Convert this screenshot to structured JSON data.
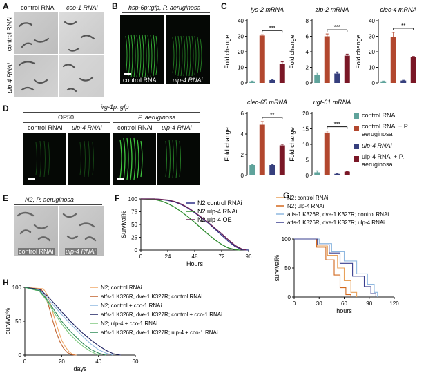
{
  "panels": {
    "A": {
      "label": "A",
      "col_headers": [
        "control RNAi",
        "cco-1 RNAi"
      ],
      "row_headers": [
        "control RNAi",
        "ulp-4 RNAi"
      ]
    },
    "B": {
      "label": "B",
      "title": "hsp-6p::gfp, P. aeruginosa",
      "captions": [
        "control RNAi",
        "ulp-4 RNAi"
      ]
    },
    "C": {
      "label": "C",
      "legend": [
        {
          "label": "control RNAi",
          "color": "#5fa39b"
        },
        {
          "label": "control RNAi + P. aeruginosa",
          "color": "#b2472e"
        },
        {
          "label": "ulp-4 RNAi",
          "color": "#363f7d"
        },
        {
          "label": "ulp-4 RNAi + P. aeruginosa",
          "color": "#7a1726"
        }
      ]
    },
    "D": {
      "label": "D",
      "title": "irg-1p::gfp",
      "groups": [
        "OP50",
        "P. aeruginosa"
      ],
      "captions": [
        "control RNAi",
        "ulp-4 RNAi",
        "control RNAi",
        "ulp-4 RNAi"
      ]
    },
    "E": {
      "label": "E",
      "title": "N2, P. aeruginosa",
      "captions": [
        "control RNAi",
        "ulp-4 RNAi"
      ]
    },
    "F": {
      "label": "F"
    },
    "G": {
      "label": "G"
    },
    "H": {
      "label": "H"
    }
  },
  "chart_data": [
    {
      "id": "C1",
      "type": "bar",
      "title": "lys-2 mRNA",
      "ylabel": "Fold change",
      "ylim": [
        0,
        40
      ],
      "yticks": [
        0,
        10,
        20,
        30,
        40
      ],
      "values": [
        1,
        30.5,
        1.8,
        12
      ],
      "errors": [
        0.2,
        0.5,
        0.3,
        1.5
      ],
      "significance": "***"
    },
    {
      "id": "C2",
      "type": "bar",
      "title": "zip-2 mRNA",
      "ylabel": "Fold change",
      "ylim": [
        0,
        8
      ],
      "yticks": [
        0,
        2,
        4,
        6,
        8
      ],
      "values": [
        1,
        6,
        1.2,
        3.5
      ],
      "errors": [
        0.3,
        0.3,
        0.2,
        0.2
      ],
      "significance": "***"
    },
    {
      "id": "C3",
      "type": "bar",
      "title": "clec-4 mRNA",
      "ylabel": "Fold change",
      "ylim": [
        0,
        40
      ],
      "yticks": [
        0,
        10,
        20,
        30,
        40
      ],
      "values": [
        1,
        29.5,
        1.5,
        16.5
      ],
      "errors": [
        0.2,
        3,
        0.2,
        0.5
      ],
      "significance": "**"
    },
    {
      "id": "C4",
      "type": "bar",
      "title": "clec-65 mRNA",
      "ylabel": "Fold change",
      "ylim": [
        0,
        6
      ],
      "yticks": [
        0,
        2,
        4,
        6
      ],
      "values": [
        1,
        4.9,
        1,
        2.9
      ],
      "errors": [
        0.05,
        0.3,
        0.05,
        0.1
      ],
      "significance": "**"
    },
    {
      "id": "C5",
      "type": "bar",
      "title": "ugt-61 mRNA",
      "ylabel": "Fold change",
      "ylim": [
        0,
        20
      ],
      "yticks": [
        0,
        5,
        10,
        15,
        20
      ],
      "values": [
        1,
        13.8,
        0.5,
        1.2
      ],
      "errors": [
        0.5,
        0.5,
        0.1,
        0.1
      ],
      "significance": "***"
    },
    {
      "id": "F",
      "type": "line",
      "ylabel": "Survival%",
      "xlabel": "Hours",
      "xlim": [
        0,
        96
      ],
      "ylim": [
        0,
        100
      ],
      "xticks": [
        0,
        24,
        48,
        72,
        96
      ],
      "yticks": [
        0,
        25,
        50,
        75,
        100
      ],
      "series": [
        {
          "name": "N2 control RNAi",
          "color": "#2d2f85",
          "x": [
            0,
            12,
            18,
            24,
            30,
            36,
            42,
            48,
            54,
            60,
            66,
            72,
            78,
            84,
            90,
            96
          ],
          "y": [
            100,
            100,
            99,
            97,
            94,
            89,
            82,
            73,
            63,
            53,
            41,
            29,
            17,
            7,
            1,
            0
          ]
        },
        {
          "name": "N2 ulp-4 RNAi",
          "color": "#2e8b2e",
          "x": [
            0,
            12,
            18,
            24,
            30,
            36,
            42,
            48,
            54,
            60,
            66,
            72,
            78,
            84,
            88
          ],
          "y": [
            100,
            99,
            96,
            91,
            84,
            75,
            65,
            54,
            42,
            31,
            20,
            11,
            4,
            1,
            0
          ]
        },
        {
          "name": "N2 ulp-4 OE",
          "color": "#6b2358",
          "x": [
            0,
            12,
            18,
            24,
            30,
            36,
            42,
            48,
            54,
            60,
            66,
            72,
            78,
            84,
            90,
            94
          ],
          "y": [
            100,
            100,
            99,
            98,
            95,
            90,
            83,
            74,
            64,
            54,
            43,
            32,
            20,
            9,
            2,
            0
          ]
        }
      ]
    },
    {
      "id": "G",
      "type": "line",
      "ylabel": "survival%",
      "xlabel": "hours",
      "xlim": [
        0,
        120
      ],
      "ylim": [
        0,
        100
      ],
      "xticks": [
        0,
        30,
        60,
        90,
        120
      ],
      "yticks": [
        0,
        50,
        100
      ],
      "series": [
        {
          "name": "N2; control RNAi",
          "color": "#e8a15a",
          "x": [
            0,
            27,
            27,
            40,
            40,
            52,
            52,
            60,
            60,
            68,
            68,
            75,
            75
          ],
          "y": [
            100,
            100,
            88,
            88,
            72,
            72,
            50,
            50,
            28,
            28,
            8,
            8,
            0
          ]
        },
        {
          "name": "N2; ulp-4 RNAi",
          "color": "#d2691e",
          "x": [
            0,
            27,
            27,
            38,
            38,
            48,
            48,
            55,
            55,
            62,
            62,
            68,
            68
          ],
          "y": [
            100,
            100,
            86,
            86,
            64,
            64,
            38,
            38,
            16,
            16,
            4,
            4,
            0
          ]
        },
        {
          "name": "atfs-1 K326R, dve-1 K327R; control RNAi",
          "color": "#8fb8e0",
          "x": [
            0,
            30,
            30,
            45,
            45,
            60,
            60,
            75,
            75,
            88,
            88,
            96,
            96,
            100,
            100
          ],
          "y": [
            100,
            100,
            92,
            92,
            78,
            78,
            62,
            62,
            40,
            40,
            22,
            22,
            8,
            8,
            0
          ]
        },
        {
          "name": "atfs-1 K326R, dve-1 K327R; ulp-4 RNAi",
          "color": "#3a3f8f",
          "x": [
            0,
            28,
            28,
            42,
            42,
            55,
            55,
            70,
            70,
            84,
            84,
            92,
            92,
            98,
            98
          ],
          "y": [
            100,
            100,
            90,
            90,
            76,
            76,
            58,
            58,
            36,
            36,
            18,
            18,
            6,
            6,
            0
          ]
        }
      ]
    },
    {
      "id": "H",
      "type": "line",
      "ylabel": "survival%",
      "xlabel": "days",
      "xlim": [
        0,
        60
      ],
      "ylim": [
        0,
        100
      ],
      "xticks": [
        0,
        20,
        40,
        60
      ],
      "yticks": [
        0,
        50,
        100
      ],
      "series": [
        {
          "name": "N2; control RNAi",
          "color": "#f0a868",
          "x": [
            0,
            10,
            12,
            14,
            16,
            18,
            20,
            22,
            24,
            26,
            28
          ],
          "y": [
            100,
            98,
            90,
            75,
            55,
            38,
            22,
            12,
            5,
            1,
            0
          ]
        },
        {
          "name": "atfs-1 K326R, dve-1 K327R; control RNAi",
          "color": "#c0602a",
          "x": [
            0,
            9,
            11,
            13,
            15,
            17,
            19,
            21,
            23,
            25,
            27
          ],
          "y": [
            100,
            97,
            88,
            72,
            52,
            34,
            20,
            10,
            4,
            1,
            0
          ]
        },
        {
          "name": "N2; control + cco-1 RNAi",
          "color": "#8fb8e0",
          "x": [
            0,
            8,
            12,
            16,
            20,
            24,
            28,
            32,
            36,
            40,
            44,
            48
          ],
          "y": [
            100,
            96,
            85,
            72,
            60,
            48,
            37,
            26,
            16,
            8,
            3,
            0
          ]
        },
        {
          "name": "atfs-1 K326R, dve-1 K327R; control + cco-1 RNAi",
          "color": "#1c2060",
          "x": [
            0,
            8,
            12,
            16,
            20,
            24,
            28,
            32,
            36,
            40,
            44,
            48,
            52
          ],
          "y": [
            100,
            97,
            88,
            76,
            64,
            52,
            41,
            31,
            22,
            14,
            7,
            2,
            0
          ]
        },
        {
          "name": "N2; ulp-4 + cco-1 RNAi",
          "color": "#7fc97f",
          "x": [
            0,
            8,
            12,
            16,
            20,
            24,
            28,
            32,
            36,
            40
          ],
          "y": [
            100,
            94,
            80,
            62,
            46,
            32,
            21,
            12,
            5,
            0
          ]
        },
        {
          "name": "atfs-1 K326R, dve-1 K327R; ulp-4 + cco-1 RNAi",
          "color": "#2e8b57",
          "x": [
            0,
            8,
            12,
            16,
            20,
            24,
            28,
            32,
            36,
            40,
            44
          ],
          "y": [
            100,
            95,
            82,
            66,
            50,
            37,
            26,
            16,
            8,
            3,
            0
          ]
        }
      ]
    }
  ]
}
